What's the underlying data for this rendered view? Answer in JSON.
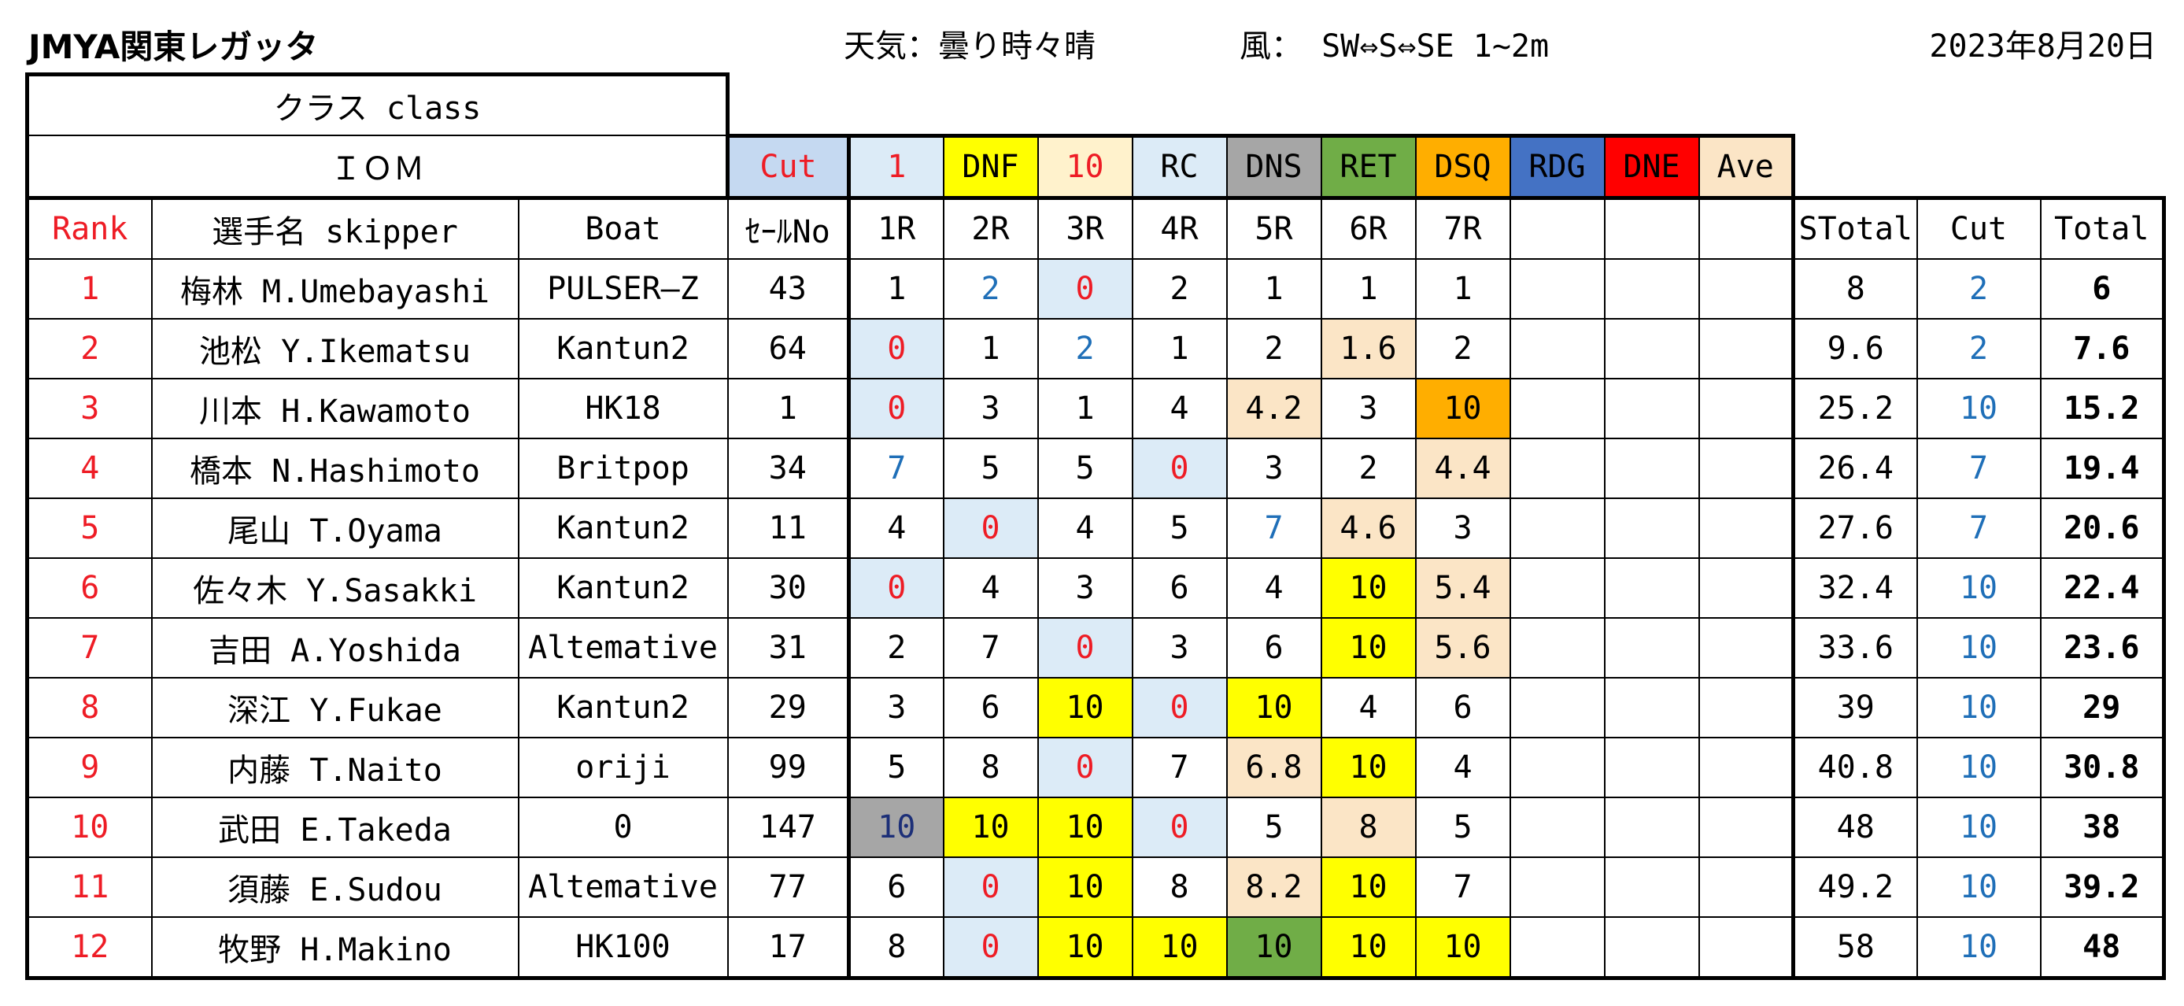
{
  "header": {
    "title": "JMYA関東レガッタ",
    "weather": "天気：曇り時々晴",
    "wind": "風： SW⇔S⇔SE 1~2m",
    "date": "2023年8月20日"
  },
  "class_label": "クラス class",
  "class_value": "ＩＯＭ",
  "legend": {
    "cut": "Cut",
    "one": "1",
    "dnf": "DNF",
    "ten": "10",
    "rc": "RC",
    "dns": "DNS",
    "ret": "RET",
    "dsq": "DSQ",
    "rdg": "RDG",
    "dne": "DNE",
    "ave": "Ave"
  },
  "legend_colors": {
    "cut": "#c5d9f1",
    "one": "#dcebf7",
    "dnf": "#ffff00",
    "ten": "#fff2cc",
    "rc": "#dcebf7",
    "dns": "#a6a6a6",
    "ret": "#70ad47",
    "dsq": "#ffae00",
    "rdg": "#4472c4",
    "dne": "#ff0000",
    "ave": "#fbe5c6"
  },
  "columns": {
    "rank": "Rank",
    "skipper": "選手名 skipper",
    "boat": "Boat",
    "sail": "ｾｰﾙNo",
    "r1": "1R",
    "r2": "2R",
    "r3": "3R",
    "r4": "4R",
    "r5": "5R",
    "r6": "6R",
    "r7": "7R",
    "stotal": "STotal",
    "cut": "Cut",
    "total": "Total"
  },
  "rows": [
    {
      "rank": "1",
      "skipper": "梅林 M.Umebayashi",
      "boat": "PULSER—Z",
      "sail": "43",
      "r1": "1",
      "r2": "2",
      "r3": "0",
      "r4": "2",
      "r5": "1",
      "r6": "1",
      "r7": "1",
      "stotal": "8",
      "cut": "2",
      "total": "6"
    },
    {
      "rank": "2",
      "skipper": "池松 Y.Ikematsu",
      "boat": "Kantun2",
      "sail": "64",
      "r1": "0",
      "r2": "1",
      "r3": "2",
      "r4": "1",
      "r5": "2",
      "r6": "1.6",
      "r7": "2",
      "stotal": "9.6",
      "cut": "2",
      "total": "7.6"
    },
    {
      "rank": "3",
      "skipper": "川本 H.Kawamoto",
      "boat": "HK18",
      "sail": "1",
      "r1": "0",
      "r2": "3",
      "r3": "1",
      "r4": "4",
      "r5": "4.2",
      "r6": "3",
      "r7": "10",
      "stotal": "25.2",
      "cut": "10",
      "total": "15.2"
    },
    {
      "rank": "4",
      "skipper": "橋本 N.Hashimoto",
      "boat": "Britpop",
      "sail": "34",
      "r1": "7",
      "r2": "5",
      "r3": "5",
      "r4": "0",
      "r5": "3",
      "r6": "2",
      "r7": "4.4",
      "stotal": "26.4",
      "cut": "7",
      "total": "19.4"
    },
    {
      "rank": "5",
      "skipper": "尾山 T.Oyama",
      "boat": "Kantun2",
      "sail": "11",
      "r1": "4",
      "r2": "0",
      "r3": "4",
      "r4": "5",
      "r5": "7",
      "r6": "4.6",
      "r7": "3",
      "stotal": "27.6",
      "cut": "7",
      "total": "20.6"
    },
    {
      "rank": "6",
      "skipper": "佐々木 Y.Sasakki",
      "boat": "Kantun2",
      "sail": "30",
      "r1": "0",
      "r2": "4",
      "r3": "3",
      "r4": "6",
      "r5": "4",
      "r6": "10",
      "r7": "5.4",
      "stotal": "32.4",
      "cut": "10",
      "total": "22.4"
    },
    {
      "rank": "7",
      "skipper": "吉田 A.Yoshida",
      "boat": "Altemative",
      "sail": "31",
      "r1": "2",
      "r2": "7",
      "r3": "0",
      "r4": "3",
      "r5": "6",
      "r6": "10",
      "r7": "5.6",
      "stotal": "33.6",
      "cut": "10",
      "total": "23.6"
    },
    {
      "rank": "8",
      "skipper": "深江 Y.Fukae",
      "boat": "Kantun2",
      "sail": "29",
      "r1": "3",
      "r2": "6",
      "r3": "10",
      "r4": "0",
      "r5": "10",
      "r6": "4",
      "r7": "6",
      "stotal": "39",
      "cut": "10",
      "total": "29"
    },
    {
      "rank": "9",
      "skipper": "内藤 T.Naito",
      "boat": "oriji",
      "sail": "99",
      "r1": "5",
      "r2": "8",
      "r3": "0",
      "r4": "7",
      "r5": "6.8",
      "r6": "10",
      "r7": "4",
      "stotal": "40.8",
      "cut": "10",
      "total": "30.8"
    },
    {
      "rank": "10",
      "skipper": "武田 E.Takeda",
      "boat": "0",
      "sail": "147",
      "r1": "10",
      "r2": "10",
      "r3": "10",
      "r4": "0",
      "r5": "5",
      "r6": "8",
      "r7": "5",
      "stotal": "48",
      "cut": "10",
      "total": "38"
    },
    {
      "rank": "11",
      "skipper": "須藤 E.Sudou",
      "boat": "Altemative",
      "sail": "77",
      "r1": "6",
      "r2": "0",
      "r3": "10",
      "r4": "8",
      "r5": "8.2",
      "r6": "10",
      "r7": "7",
      "stotal": "49.2",
      "cut": "10",
      "total": "39.2"
    },
    {
      "rank": "12",
      "skipper": "牧野 H.Makino",
      "boat": "HK100",
      "sail": "17",
      "r1": "8",
      "r2": "0",
      "r3": "10",
      "r4": "10",
      "r5": "10",
      "r6": "10",
      "r7": "10",
      "stotal": "58",
      "cut": "10",
      "total": "48"
    }
  ]
}
